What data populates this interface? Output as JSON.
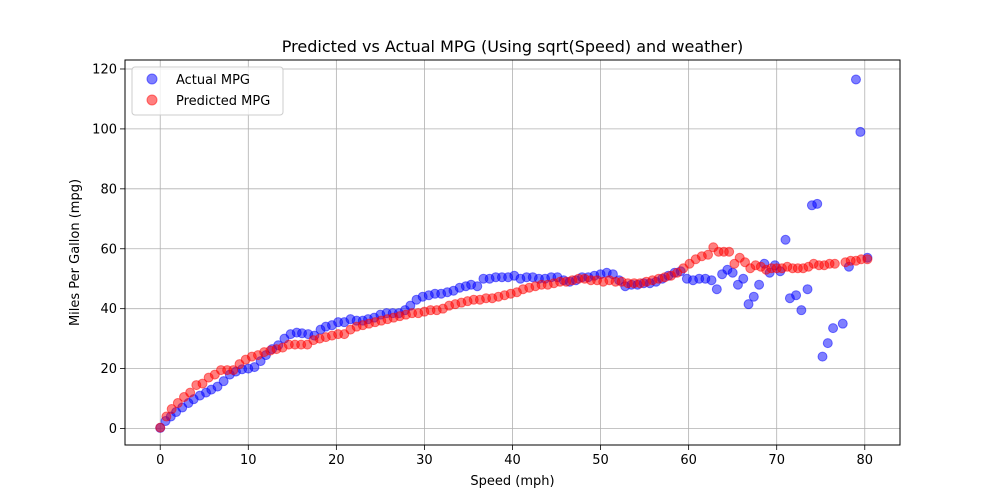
{
  "chart_data": {
    "type": "scatter",
    "title": "Predicted vs Actual MPG (Using sqrt(Speed) and weather)",
    "xlabel": "Speed (mph)",
    "ylabel": "Miles Per Gallon (mpg)",
    "xlim": [
      -4,
      84
    ],
    "ylim": [
      -5.5,
      123
    ],
    "xticks": [
      0,
      10,
      20,
      30,
      40,
      50,
      60,
      70,
      80
    ],
    "yticks": [
      0,
      20,
      40,
      60,
      80,
      100,
      120
    ],
    "grid": true,
    "legend_position": "top-left",
    "series": [
      {
        "name": "Actual MPG",
        "color": "#0000ff",
        "points": [
          [
            0,
            0.2
          ],
          [
            0.6,
            2.5
          ],
          [
            1.2,
            4
          ],
          [
            1.8,
            5.5
          ],
          [
            2.5,
            7
          ],
          [
            3.2,
            8.5
          ],
          [
            3.8,
            9.8
          ],
          [
            4.5,
            11
          ],
          [
            5.2,
            12
          ],
          [
            5.8,
            13
          ],
          [
            6.5,
            14
          ],
          [
            7.2,
            15.8
          ],
          [
            7.9,
            18
          ],
          [
            8.6,
            19
          ],
          [
            9.3,
            19.8
          ],
          [
            10,
            20
          ],
          [
            10.7,
            20.5
          ],
          [
            11.4,
            22.5
          ],
          [
            12,
            24.5
          ],
          [
            12.7,
            26.5
          ],
          [
            13.4,
            27.8
          ],
          [
            14.1,
            30
          ],
          [
            14.8,
            31.5
          ],
          [
            15.5,
            32
          ],
          [
            16.1,
            31.8
          ],
          [
            16.8,
            31.5
          ],
          [
            17.5,
            31
          ],
          [
            18.2,
            33
          ],
          [
            18.8,
            34
          ],
          [
            19.5,
            34.5
          ],
          [
            20.2,
            35.5
          ],
          [
            20.9,
            35.5
          ],
          [
            21.6,
            36.5
          ],
          [
            22.3,
            36
          ],
          [
            23,
            36
          ],
          [
            23.6,
            36.5
          ],
          [
            24.3,
            37
          ],
          [
            25,
            38
          ],
          [
            25.7,
            38.5
          ],
          [
            26.4,
            38.5
          ],
          [
            27.1,
            38.5
          ],
          [
            27.8,
            39.5
          ],
          [
            28.4,
            41
          ],
          [
            29.1,
            43
          ],
          [
            29.8,
            44
          ],
          [
            30.5,
            44.5
          ],
          [
            31.2,
            45
          ],
          [
            31.9,
            45
          ],
          [
            32.6,
            45.5
          ],
          [
            33.3,
            46
          ],
          [
            34,
            47
          ],
          [
            34.7,
            47.5
          ],
          [
            35.3,
            48
          ],
          [
            36,
            47.5
          ],
          [
            36.7,
            50
          ],
          [
            37.4,
            50
          ],
          [
            38.1,
            50.5
          ],
          [
            38.8,
            50.5
          ],
          [
            39.5,
            50.5
          ],
          [
            40.2,
            51
          ],
          [
            40.9,
            50
          ],
          [
            41.6,
            50.5
          ],
          [
            42.3,
            50.5
          ],
          [
            43,
            50
          ],
          [
            43.7,
            50
          ],
          [
            44.4,
            50.5
          ],
          [
            45.1,
            50.5
          ],
          [
            45.8,
            49.5
          ],
          [
            46.5,
            49
          ],
          [
            47.2,
            49.5
          ],
          [
            47.9,
            50.5
          ],
          [
            48.6,
            50.5
          ],
          [
            49.3,
            51
          ],
          [
            50,
            51.5
          ],
          [
            50.7,
            52
          ],
          [
            51.4,
            51.5
          ],
          [
            52.1,
            49.5
          ],
          [
            52.8,
            47.5
          ],
          [
            53.5,
            48
          ],
          [
            54.2,
            48
          ],
          [
            54.9,
            48.5
          ],
          [
            55.6,
            48.5
          ],
          [
            56.3,
            49
          ],
          [
            57,
            50
          ],
          [
            57.7,
            51
          ],
          [
            58.4,
            52
          ],
          [
            59.1,
            52.5
          ],
          [
            59.8,
            50
          ],
          [
            60.5,
            49.5
          ],
          [
            61.2,
            50
          ],
          [
            61.9,
            50
          ],
          [
            62.6,
            49.5
          ],
          [
            63.2,
            46.5
          ],
          [
            63.8,
            51.5
          ],
          [
            64.4,
            53
          ],
          [
            65,
            52
          ],
          [
            65.6,
            48
          ],
          [
            66.2,
            50
          ],
          [
            66.8,
            41.5
          ],
          [
            67.4,
            44
          ],
          [
            68,
            48
          ],
          [
            68.6,
            55
          ],
          [
            69.2,
            52
          ],
          [
            69.8,
            54.5
          ],
          [
            70.4,
            52.5
          ],
          [
            71,
            63
          ],
          [
            71.5,
            43.5
          ],
          [
            72.2,
            44.5
          ],
          [
            72.8,
            39.5
          ],
          [
            73.5,
            46.5
          ],
          [
            74,
            74.5
          ],
          [
            74.6,
            75
          ],
          [
            75.2,
            24
          ],
          [
            75.8,
            28.5
          ],
          [
            76.4,
            33.5
          ],
          [
            77.5,
            35
          ],
          [
            78.2,
            54
          ],
          [
            79,
            116.5
          ],
          [
            79.5,
            99
          ],
          [
            80.3,
            57
          ]
        ]
      },
      {
        "name": "Predicted MPG",
        "color": "#ff0000",
        "points": [
          [
            0,
            0.3
          ],
          [
            0.7,
            4
          ],
          [
            1.3,
            6.5
          ],
          [
            2,
            8.5
          ],
          [
            2.7,
            10.5
          ],
          [
            3.4,
            12
          ],
          [
            4.1,
            14.5
          ],
          [
            4.8,
            15
          ],
          [
            5.5,
            17
          ],
          [
            6.2,
            18
          ],
          [
            6.9,
            19.5
          ],
          [
            7.6,
            19.5
          ],
          [
            8.3,
            19.5
          ],
          [
            9,
            21.5
          ],
          [
            9.7,
            23
          ],
          [
            10.4,
            24
          ],
          [
            11.1,
            24.5
          ],
          [
            11.8,
            25.5
          ],
          [
            12.5,
            26
          ],
          [
            13.2,
            26.5
          ],
          [
            13.9,
            27
          ],
          [
            14.6,
            28
          ],
          [
            15.3,
            28
          ],
          [
            16,
            28
          ],
          [
            16.7,
            28
          ],
          [
            17.4,
            29.5
          ],
          [
            18.1,
            30
          ],
          [
            18.8,
            30.5
          ],
          [
            19.5,
            31
          ],
          [
            20.2,
            31.5
          ],
          [
            20.9,
            31.5
          ],
          [
            21.6,
            33
          ],
          [
            22.3,
            34
          ],
          [
            23,
            34.5
          ],
          [
            23.7,
            35
          ],
          [
            24.4,
            35.5
          ],
          [
            25.1,
            36
          ],
          [
            25.8,
            36.5
          ],
          [
            26.5,
            37
          ],
          [
            27.2,
            37.5
          ],
          [
            27.9,
            38
          ],
          [
            28.6,
            38.5
          ],
          [
            29.3,
            38.5
          ],
          [
            30,
            39
          ],
          [
            30.7,
            39.5
          ],
          [
            31.4,
            39.5
          ],
          [
            32.1,
            40
          ],
          [
            32.8,
            41
          ],
          [
            33.5,
            41.5
          ],
          [
            34.2,
            42
          ],
          [
            34.9,
            42.5
          ],
          [
            35.6,
            43
          ],
          [
            36.3,
            43
          ],
          [
            37,
            43.5
          ],
          [
            37.7,
            43.5
          ],
          [
            38.4,
            44
          ],
          [
            39.1,
            44.5
          ],
          [
            39.8,
            45
          ],
          [
            40.5,
            45.5
          ],
          [
            41.2,
            46.5
          ],
          [
            41.9,
            47
          ],
          [
            42.6,
            47.5
          ],
          [
            43.3,
            48
          ],
          [
            44,
            48
          ],
          [
            44.7,
            48.5
          ],
          [
            45.4,
            49
          ],
          [
            46.1,
            49
          ],
          [
            46.8,
            49.5
          ],
          [
            47.5,
            50
          ],
          [
            48.2,
            50
          ],
          [
            48.9,
            49.5
          ],
          [
            49.6,
            49.5
          ],
          [
            50.3,
            49
          ],
          [
            51,
            49.5
          ],
          [
            51.7,
            49
          ],
          [
            52.4,
            49
          ],
          [
            53.1,
            48.5
          ],
          [
            53.8,
            48.5
          ],
          [
            54.5,
            48.5
          ],
          [
            55.2,
            49
          ],
          [
            55.9,
            49.5
          ],
          [
            56.6,
            50
          ],
          [
            57.3,
            50.5
          ],
          [
            58,
            51
          ],
          [
            58.7,
            52
          ],
          [
            59.4,
            53.5
          ],
          [
            60.1,
            55
          ],
          [
            60.8,
            56.5
          ],
          [
            61.5,
            57.5
          ],
          [
            62.2,
            58
          ],
          [
            62.8,
            60.5
          ],
          [
            63.4,
            59
          ],
          [
            64,
            59
          ],
          [
            64.6,
            59
          ],
          [
            65.2,
            55
          ],
          [
            65.8,
            57
          ],
          [
            66.4,
            55.5
          ],
          [
            67,
            53.5
          ],
          [
            67.6,
            54.5
          ],
          [
            68.2,
            54
          ],
          [
            68.8,
            53
          ],
          [
            69.4,
            53.5
          ],
          [
            70,
            53.5
          ],
          [
            70.6,
            53.5
          ],
          [
            71.2,
            54
          ],
          [
            71.8,
            53.5
          ],
          [
            72.4,
            53.5
          ],
          [
            73,
            53.5
          ],
          [
            73.6,
            54
          ],
          [
            74.2,
            55
          ],
          [
            74.8,
            54.5
          ],
          [
            75.4,
            54.5
          ],
          [
            76,
            55
          ],
          [
            76.6,
            55
          ],
          [
            77.8,
            55.5
          ],
          [
            78.4,
            56
          ],
          [
            79,
            56
          ],
          [
            79.6,
            56.5
          ],
          [
            80.3,
            56.5
          ]
        ]
      }
    ]
  }
}
